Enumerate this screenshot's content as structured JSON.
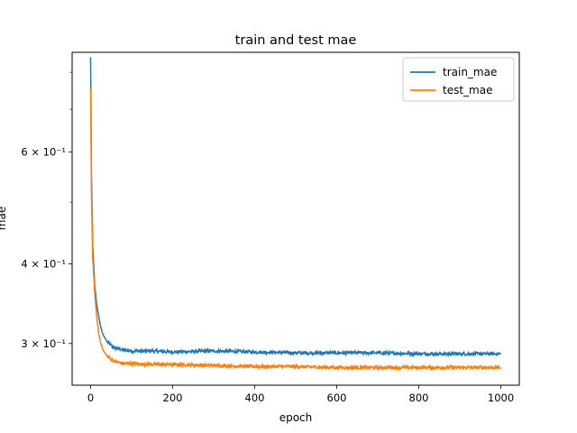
{
  "chart_data": {
    "type": "line",
    "title": "train and test mae",
    "xlabel": "epoch",
    "ylabel": "mae",
    "xlim": [
      -45,
      1045
    ],
    "ylim": [
      0.258,
      0.86
    ],
    "yscale": "log",
    "grid": false,
    "legend_position": "top-right",
    "x_ticks": [
      0,
      200,
      400,
      600,
      800,
      1000
    ],
    "x_tick_labels": [
      "0",
      "200",
      "400",
      "600",
      "800",
      "1000"
    ],
    "y_major_ticks": [
      0.3,
      0.4,
      0.6
    ],
    "y_major_tick_labels": [
      "3 × 10⁻¹",
      "4 × 10⁻¹",
      "6 × 10⁻¹"
    ],
    "y_minor_ticks": [
      0.5,
      0.7,
      0.8
    ],
    "colors": {
      "train_mae": "#1f77b4",
      "test_mae": "#ff7f0e"
    },
    "series": [
      {
        "name": "train_mae",
        "color": "#1f77b4",
        "x": [
          0,
          2,
          5,
          10,
          15,
          20,
          25,
          30,
          40,
          50,
          60,
          70,
          80,
          100,
          150,
          200,
          300,
          400,
          500,
          600,
          700,
          800,
          900,
          1000
        ],
        "y": [
          0.845,
          0.56,
          0.43,
          0.37,
          0.345,
          0.33,
          0.318,
          0.31,
          0.302,
          0.298,
          0.295,
          0.294,
          0.293,
          0.292,
          0.292,
          0.291,
          0.292,
          0.291,
          0.29,
          0.29,
          0.29,
          0.289,
          0.289,
          0.289
        ]
      },
      {
        "name": "test_mae",
        "color": "#ff7f0e",
        "x": [
          0,
          2,
          5,
          10,
          15,
          20,
          25,
          30,
          40,
          50,
          60,
          70,
          80,
          100,
          150,
          200,
          300,
          400,
          500,
          600,
          700,
          800,
          900,
          1000
        ],
        "y": [
          0.755,
          0.52,
          0.41,
          0.36,
          0.33,
          0.31,
          0.3,
          0.293,
          0.287,
          0.283,
          0.281,
          0.28,
          0.279,
          0.279,
          0.278,
          0.278,
          0.277,
          0.276,
          0.276,
          0.275,
          0.275,
          0.275,
          0.275,
          0.275
        ]
      }
    ]
  }
}
